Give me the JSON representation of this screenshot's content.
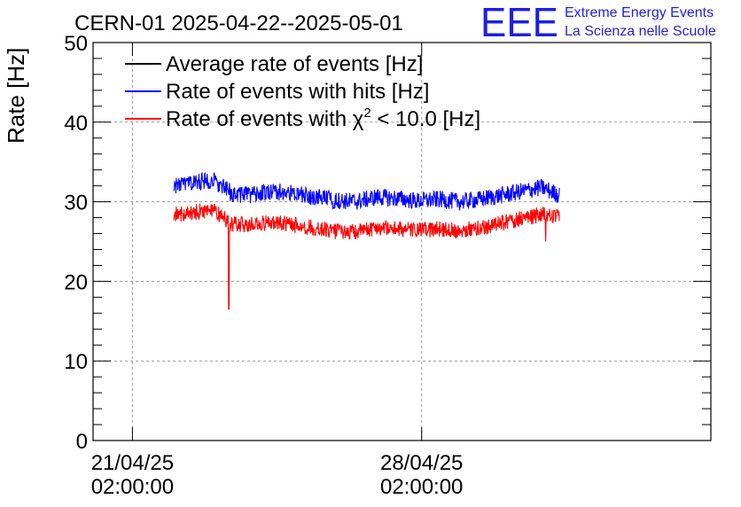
{
  "chart_data": {
    "type": "line",
    "title": "CERN-01 2025-04-22--2025-05-01",
    "xlabel": "",
    "ylabel": "Rate [Hz]",
    "ylim": [
      0,
      50
    ],
    "yticks": [
      0,
      10,
      20,
      30,
      40,
      50
    ],
    "xlim": [
      "2025-04-20 03:08",
      "2025-05-05 02:00"
    ],
    "xticks": [
      {
        "date": "21/04/25",
        "time": "02:00:00",
        "x": "2025-04-21 02:00"
      },
      {
        "date": "28/04/25",
        "time": "02:00:00",
        "x": "2025-04-28 02:00"
      }
    ],
    "grid": true,
    "legend_position": "top-left",
    "series": [
      {
        "name": "Average rate of events [Hz]",
        "color": "#000000",
        "x": [],
        "y": []
      },
      {
        "name": "Rate of events with hits [Hz]",
        "color": "#0000ff",
        "x": [
          "2025-04-22 02:00",
          "2025-04-22 12:00",
          "2025-04-23 00:00",
          "2025-04-23 12:00",
          "2025-04-24 00:00",
          "2025-04-24 12:00",
          "2025-04-25 00:00",
          "2025-04-25 12:00",
          "2025-04-26 00:00",
          "2025-04-26 12:00",
          "2025-04-27 00:00",
          "2025-04-27 12:00",
          "2025-04-28 00:00",
          "2025-04-28 12:00",
          "2025-04-29 00:00",
          "2025-04-29 12:00",
          "2025-04-30 00:00",
          "2025-04-30 12:00",
          "2025-05-01 00:00",
          "2025-05-01 10:00"
        ],
        "y": [
          32.0,
          32.3,
          32.8,
          31.0,
          30.9,
          31.3,
          31.0,
          30.6,
          30.2,
          30.0,
          30.6,
          30.4,
          30.1,
          30.3,
          30.0,
          30.3,
          30.8,
          31.3,
          31.8,
          30.8
        ],
        "noise": 1.1
      },
      {
        "name": "Rate of events with χ² < 10.0 [Hz]",
        "color": "#ff0000",
        "x": [
          "2025-04-22 02:00",
          "2025-04-22 12:00",
          "2025-04-23 00:00",
          "2025-04-23 12:00",
          "2025-04-24 00:00",
          "2025-04-24 12:00",
          "2025-04-25 00:00",
          "2025-04-25 12:00",
          "2025-04-26 00:00",
          "2025-04-26 12:00",
          "2025-04-27 00:00",
          "2025-04-27 12:00",
          "2025-04-28 00:00",
          "2025-04-28 12:00",
          "2025-04-29 00:00",
          "2025-04-29 12:00",
          "2025-04-30 00:00",
          "2025-04-30 12:00",
          "2025-05-01 00:00",
          "2025-05-01 10:00"
        ],
        "y": [
          28.4,
          28.6,
          29.0,
          27.2,
          27.1,
          27.5,
          27.1,
          26.7,
          26.3,
          26.2,
          26.8,
          26.6,
          26.4,
          26.6,
          26.4,
          26.7,
          27.3,
          27.9,
          28.4,
          28.0
        ],
        "noise": 1.0,
        "spikes": [
          {
            "x": "2025-04-23 10:00",
            "y": 16.5
          },
          {
            "x": "2025-05-01 02:00",
            "y": 25.0
          }
        ]
      }
    ]
  },
  "legend": {
    "entries": [
      {
        "text": "Average rate of events [Hz]",
        "color": "#000000"
      },
      {
        "text": "Rate of events with hits [Hz]",
        "color": "#0000ff"
      },
      {
        "text_pre": "Rate of events with ",
        "symbol": "χ",
        "sup": "2",
        "text_post": " < 10.0 [Hz]",
        "color": "#ff0000"
      }
    ]
  },
  "logo": {
    "mark": "EEE",
    "line1": "Extreme Energy Events",
    "line2": "La Scienza nelle Scuole",
    "color": "#1f1fe0"
  }
}
